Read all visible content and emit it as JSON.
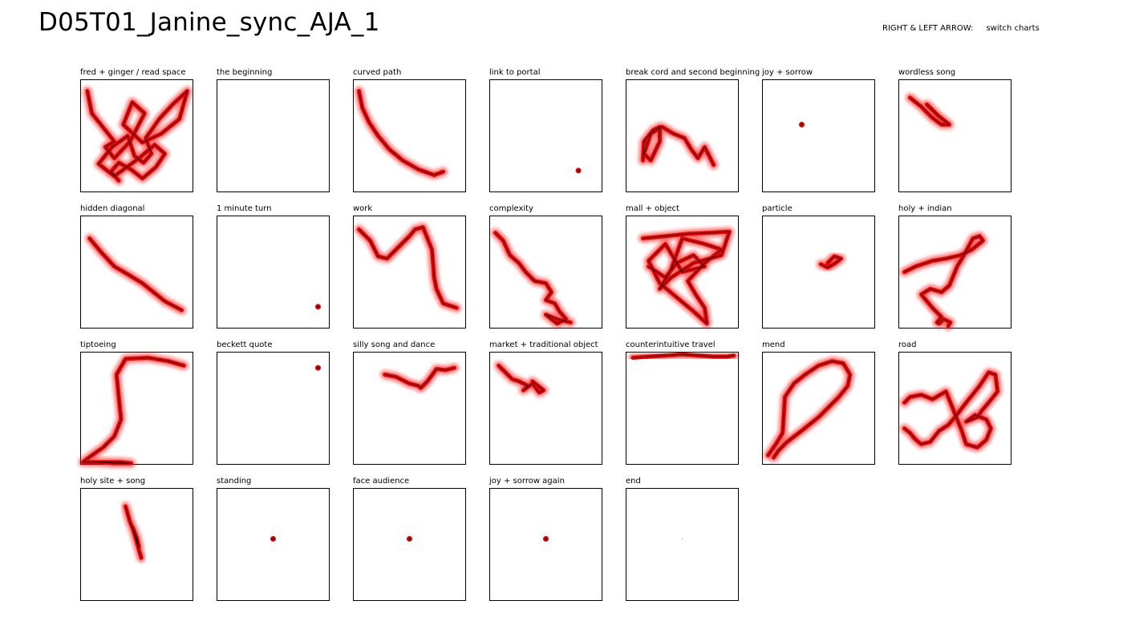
{
  "page": {
    "title": "D05T01_Janine_sync_AJA_1",
    "help_keys": "RIGHT & LEFT ARROW:",
    "help_action": "switch charts"
  },
  "chart_data": [
    {
      "type": "line",
      "title": "fred + ginger / read space",
      "x": [
        0.06,
        0.1,
        0.18,
        0.3,
        0.22,
        0.3,
        0.44,
        0.57,
        0.46,
        0.38,
        0.55,
        0.72,
        0.88,
        0.95,
        0.82,
        0.7,
        0.63,
        0.58,
        0.63,
        0.56,
        0.48,
        0.42,
        0.28,
        0.16,
        0.3,
        0.52,
        0.66,
        0.75,
        0.67,
        0.55,
        0.45,
        0.34,
        0.27,
        0.34
      ],
      "y": [
        0.1,
        0.3,
        0.4,
        0.55,
        0.6,
        0.7,
        0.55,
        0.3,
        0.2,
        0.4,
        0.56,
        0.48,
        0.35,
        0.1,
        0.22,
        0.35,
        0.45,
        0.52,
        0.66,
        0.74,
        0.68,
        0.5,
        0.6,
        0.75,
        0.86,
        0.7,
        0.58,
        0.66,
        0.78,
        0.88,
        0.8,
        0.74,
        0.82,
        0.9
      ],
      "red_size": 1.0
    },
    {
      "type": "line",
      "title": "the beginning",
      "x": [],
      "y": [],
      "red_size": 1.0
    },
    {
      "type": "line",
      "title": "curved path",
      "x": [
        0.05,
        0.08,
        0.14,
        0.22,
        0.32,
        0.44,
        0.58,
        0.72,
        0.8
      ],
      "y": [
        0.1,
        0.25,
        0.38,
        0.5,
        0.62,
        0.72,
        0.8,
        0.85,
        0.82
      ],
      "red_size": 1.0
    },
    {
      "type": "line",
      "title": "link to portal",
      "x": [
        0.79,
        0.8
      ],
      "y": [
        0.81,
        0.81
      ],
      "red_size": 1.0
    },
    {
      "type": "line",
      "title": "break cord and second beginning",
      "x": [
        0.15,
        0.16,
        0.24,
        0.3,
        0.3,
        0.22,
        0.16,
        0.22,
        0.32,
        0.42,
        0.52,
        0.58,
        0.64,
        0.7,
        0.76,
        0.78
      ],
      "y": [
        0.72,
        0.55,
        0.45,
        0.42,
        0.55,
        0.72,
        0.66,
        0.48,
        0.42,
        0.48,
        0.52,
        0.62,
        0.7,
        0.6,
        0.72,
        0.76
      ],
      "red_size": 1.0
    },
    {
      "type": "line",
      "title": "joy + sorrow",
      "x": [
        0.35,
        0.36
      ],
      "y": [
        0.4,
        0.4
      ],
      "red_size": 1.0
    },
    {
      "type": "line",
      "title": "wordless song",
      "x": [
        0.1,
        0.2,
        0.3,
        0.38,
        0.45,
        0.35,
        0.25
      ],
      "y": [
        0.16,
        0.24,
        0.34,
        0.4,
        0.4,
        0.32,
        0.22
      ],
      "red_size": 1.0
    },
    {
      "type": "line",
      "title": "hidden diagonal",
      "x": [
        0.08,
        0.18,
        0.3,
        0.42,
        0.55,
        0.65,
        0.75,
        0.9
      ],
      "y": [
        0.2,
        0.32,
        0.45,
        0.52,
        0.6,
        0.68,
        0.76,
        0.84
      ],
      "red_size": 1.0
    },
    {
      "type": "line",
      "title": "1 minute turn",
      "x": [
        0.9,
        0.91
      ],
      "y": [
        0.81,
        0.81
      ],
      "red_size": 1.0
    },
    {
      "type": "line",
      "title": "work",
      "x": [
        0.05,
        0.15,
        0.22,
        0.3,
        0.4,
        0.5,
        0.55,
        0.62,
        0.7,
        0.72,
        0.74,
        0.8,
        0.92
      ],
      "y": [
        0.12,
        0.22,
        0.36,
        0.38,
        0.28,
        0.18,
        0.12,
        0.1,
        0.3,
        0.55,
        0.65,
        0.78,
        0.82
      ],
      "red_size": 1.0
    },
    {
      "type": "line",
      "title": "complexity",
      "x": [
        0.05,
        0.12,
        0.18,
        0.26,
        0.32,
        0.4,
        0.5,
        0.55,
        0.5,
        0.58,
        0.62,
        0.68,
        0.6,
        0.5,
        0.6,
        0.72
      ],
      "y": [
        0.15,
        0.22,
        0.35,
        0.42,
        0.5,
        0.58,
        0.6,
        0.68,
        0.75,
        0.78,
        0.85,
        0.92,
        0.96,
        0.88,
        0.92,
        0.95
      ],
      "red_size": 1.0
    },
    {
      "type": "line",
      "title": "mall + object",
      "x": [
        0.15,
        0.35,
        0.55,
        0.75,
        0.92,
        0.85,
        0.6,
        0.4,
        0.3,
        0.4,
        0.5,
        0.7,
        0.85,
        0.7,
        0.55,
        0.62,
        0.7,
        0.72,
        0.6,
        0.3,
        0.2,
        0.35,
        0.5,
        0.7,
        0.6,
        0.45,
        0.35,
        0.2
      ],
      "y": [
        0.2,
        0.18,
        0.16,
        0.15,
        0.14,
        0.35,
        0.42,
        0.55,
        0.65,
        0.48,
        0.2,
        0.25,
        0.3,
        0.42,
        0.58,
        0.7,
        0.82,
        0.96,
        0.85,
        0.6,
        0.4,
        0.25,
        0.5,
        0.45,
        0.35,
        0.42,
        0.55,
        0.45
      ],
      "red_size": 1.0
    },
    {
      "type": "line",
      "title": "particle",
      "x": [
        0.52,
        0.58,
        0.65,
        0.7,
        0.64,
        0.58
      ],
      "y": [
        0.43,
        0.46,
        0.42,
        0.38,
        0.36,
        0.42
      ],
      "red_size": 1.0
    },
    {
      "type": "line",
      "title": "holy + indian",
      "x": [
        0.05,
        0.15,
        0.3,
        0.42,
        0.55,
        0.65,
        0.75,
        0.72,
        0.66,
        0.58,
        0.52,
        0.45,
        0.38,
        0.28,
        0.2,
        0.3,
        0.38,
        0.34,
        0.36,
        0.4,
        0.46,
        0.44
      ],
      "y": [
        0.5,
        0.45,
        0.4,
        0.38,
        0.35,
        0.3,
        0.22,
        0.18,
        0.2,
        0.35,
        0.45,
        0.62,
        0.68,
        0.65,
        0.7,
        0.82,
        0.9,
        0.95,
        0.96,
        0.92,
        0.95,
        0.98
      ],
      "red_size": 1.0
    },
    {
      "type": "line",
      "title": "tiptoeing",
      "x": [
        0.92,
        0.78,
        0.6,
        0.4,
        0.32,
        0.34,
        0.36,
        0.3,
        0.2,
        0.1,
        0.02,
        0.15,
        0.3,
        0.45,
        0.35,
        0.1
      ],
      "y": [
        0.12,
        0.08,
        0.05,
        0.06,
        0.2,
        0.4,
        0.6,
        0.75,
        0.85,
        0.92,
        0.98,
        0.98,
        0.99,
        0.99,
        0.98,
        0.98
      ],
      "red_size": 1.0
    },
    {
      "type": "line",
      "title": "beckett quote",
      "x": [
        0.9,
        0.91
      ],
      "y": [
        0.14,
        0.14
      ],
      "red_size": 1.0
    },
    {
      "type": "line",
      "title": "silly song and dance",
      "x": [
        0.28,
        0.38,
        0.5,
        0.58,
        0.6,
        0.66,
        0.74,
        0.82,
        0.9
      ],
      "y": [
        0.2,
        0.22,
        0.28,
        0.3,
        0.32,
        0.26,
        0.15,
        0.16,
        0.14
      ],
      "red_size": 1.0
    },
    {
      "type": "line",
      "title": "market + traditional object",
      "x": [
        0.08,
        0.14,
        0.2,
        0.26,
        0.34,
        0.3,
        0.38,
        0.44,
        0.48,
        0.38
      ],
      "y": [
        0.12,
        0.18,
        0.24,
        0.26,
        0.3,
        0.34,
        0.28,
        0.36,
        0.34,
        0.26
      ],
      "red_size": 1.0
    },
    {
      "type": "line",
      "title": "counterintuitive travel",
      "x": [
        0.06,
        0.2,
        0.35,
        0.5,
        0.65,
        0.78,
        0.9,
        0.96
      ],
      "y": [
        0.05,
        0.04,
        0.03,
        0.02,
        0.03,
        0.04,
        0.04,
        0.03
      ],
      "red_size": 1.0
    },
    {
      "type": "line",
      "title": "mend",
      "x": [
        0.05,
        0.12,
        0.18,
        0.2,
        0.28,
        0.38,
        0.5,
        0.62,
        0.72,
        0.78,
        0.76,
        0.68,
        0.6,
        0.5,
        0.35,
        0.22,
        0.14,
        0.1
      ],
      "y": [
        0.92,
        0.82,
        0.72,
        0.4,
        0.28,
        0.2,
        0.12,
        0.08,
        0.1,
        0.2,
        0.3,
        0.4,
        0.48,
        0.58,
        0.7,
        0.8,
        0.88,
        0.94
      ],
      "red_size": 1.0
    },
    {
      "type": "line",
      "title": "road",
      "x": [
        0.05,
        0.1,
        0.2,
        0.3,
        0.42,
        0.5,
        0.56,
        0.6,
        0.7,
        0.78,
        0.82,
        0.78,
        0.68,
        0.6,
        0.7,
        0.74,
        0.8,
        0.88,
        0.86,
        0.8,
        0.72,
        0.6,
        0.5,
        0.44,
        0.36,
        0.28,
        0.2,
        0.15,
        0.1,
        0.05
      ],
      "y": [
        0.45,
        0.4,
        0.38,
        0.42,
        0.35,
        0.55,
        0.7,
        0.82,
        0.85,
        0.78,
        0.68,
        0.6,
        0.56,
        0.62,
        0.58,
        0.52,
        0.45,
        0.35,
        0.2,
        0.18,
        0.3,
        0.45,
        0.58,
        0.65,
        0.7,
        0.8,
        0.82,
        0.78,
        0.72,
        0.68
      ],
      "red_size": 1.0
    },
    {
      "type": "line",
      "title": "holy site + song",
      "x": [
        0.4,
        0.44,
        0.48,
        0.52,
        0.5,
        0.46,
        0.5,
        0.54
      ],
      "y": [
        0.16,
        0.3,
        0.4,
        0.52,
        0.44,
        0.34,
        0.48,
        0.62
      ],
      "red_size": 1.0
    },
    {
      "type": "line",
      "title": "standing",
      "x": [
        0.5,
        0.51
      ],
      "y": [
        0.45,
        0.45
      ],
      "red_size": 1.0
    },
    {
      "type": "line",
      "title": "face audience",
      "x": [
        0.5,
        0.5
      ],
      "y": [
        0.45,
        0.45
      ],
      "red_size": 1.0
    },
    {
      "type": "line",
      "title": "joy + sorrow again",
      "x": [
        0.5,
        0.5
      ],
      "y": [
        0.45,
        0.45
      ],
      "red_size": 1.0
    },
    {
      "type": "line",
      "title": "end",
      "x": [
        0.5
      ],
      "y": [
        0.45
      ],
      "red_size": 0.0
    }
  ]
}
